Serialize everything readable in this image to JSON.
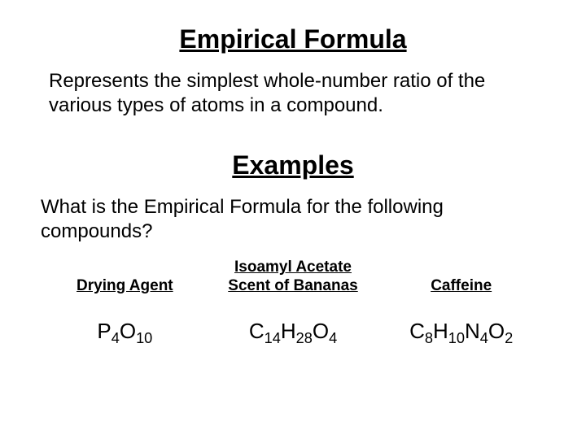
{
  "title": "Empirical Formula",
  "definition": "Represents the simplest whole-number ratio of the various types of atoms in a compound.",
  "examples_title": "Examples",
  "question": "What is the Empirical Formula for the following compounds?",
  "compounds": [
    {
      "label": "Drying Agent",
      "formula_html": "P<sub>4</sub>O<sub>10</sub>"
    },
    {
      "label": "Isoamyl Acetate\nScent of Bananas",
      "formula_html": "C<sub>14</sub>H<sub>28</sub>O<sub>4</sub>"
    },
    {
      "label": "Caffeine",
      "formula_html": "C<sub>8</sub>H<sub>10</sub>N<sub>4</sub>O<sub>2</sub>"
    }
  ],
  "colors": {
    "background": "#ffffff",
    "text": "#000000"
  },
  "typography": {
    "title_fontsize": 32,
    "body_fontsize": 24,
    "label_fontsize": 19,
    "formula_fontsize": 26
  }
}
